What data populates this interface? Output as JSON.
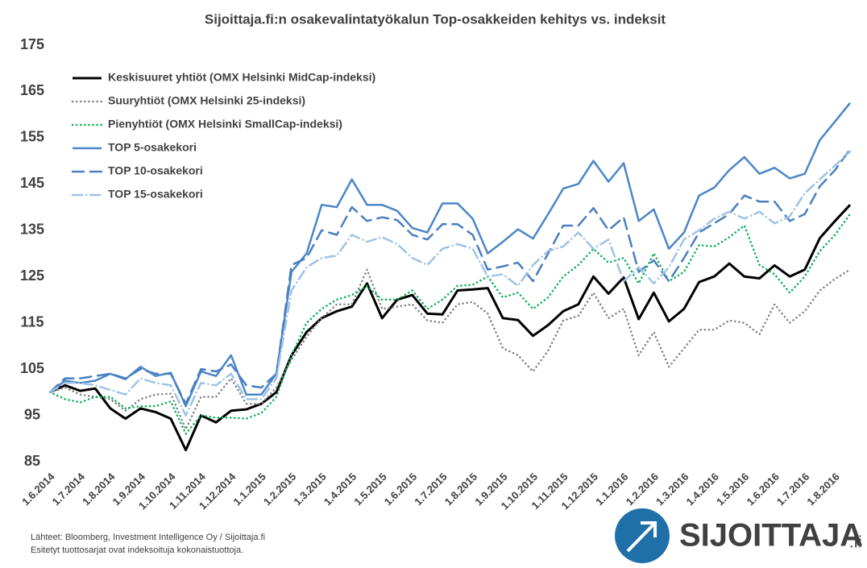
{
  "chart_data": {
    "type": "line",
    "title": "Sijoittaja.fi:n osakevalintatyökalun Top-osakkeiden kehitys vs. indeksit",
    "categories": [
      "1.6.2014",
      null,
      "1.7.2014",
      null,
      "1.8.2014",
      null,
      "1.9.2014",
      null,
      "1.10.2014",
      null,
      "1.11.2014",
      null,
      "1.12.2014",
      null,
      "1.1.2015",
      null,
      "1.2.2015",
      null,
      "1.3.2015",
      null,
      "1.4.2015",
      null,
      "1.5.2015",
      null,
      "1.6.2015",
      null,
      "1.7.2015",
      null,
      "1.8.2015",
      null,
      "1.9.2015",
      null,
      "1.10.2015",
      null,
      "1.11.2015",
      null,
      "1.12.2015",
      null,
      "1.1.2016",
      null,
      "1.2.2016",
      null,
      "1.3.2016",
      null,
      "1.4.2016",
      null,
      "1.5.2016",
      null,
      "1.6.2016",
      null,
      "1.7.2016",
      null,
      "1.8.2016",
      null
    ],
    "series": [
      {
        "name": "Keskisuuret yhtiöt (OMX Helsinki MidCap-indeksi)",
        "color": "#000000",
        "dash": "solid",
        "values": [
          100,
          101.5,
          100.3,
          100.8,
          96.5,
          94.3,
          96.5,
          95.7,
          94.3,
          87.5,
          95,
          93.5,
          96,
          96.3,
          97.5,
          100,
          108,
          113,
          116,
          117.5,
          118.5,
          123.5,
          116,
          120,
          121,
          117,
          116.8,
          122,
          122.2,
          122.5,
          116,
          115.6,
          112.2,
          114.5,
          117.5,
          119,
          125,
          121.3,
          124.8,
          115.8,
          121.5,
          115.3,
          118,
          123.8,
          125,
          127.8,
          125,
          124.6,
          127.4,
          125,
          126.5,
          133.3,
          137,
          140.5
        ]
      },
      {
        "name": "Suuryhtiöt (OMX Helsinki 25-indeksi)",
        "color": "#808080",
        "dash": "dot",
        "values": [
          100,
          101,
          99.5,
          99,
          98.5,
          96,
          98.5,
          99.5,
          99.7,
          92,
          99,
          99,
          103,
          97.5,
          97.5,
          101,
          107,
          112,
          116,
          119,
          119,
          126.5,
          118,
          118.5,
          119,
          115.5,
          115,
          119,
          119.5,
          117,
          109.5,
          108,
          104.5,
          109,
          115.5,
          116.5,
          121.5,
          116,
          118,
          108,
          113,
          105.5,
          109.5,
          113.5,
          113.5,
          115.5,
          115,
          112.5,
          119,
          115,
          117.5,
          122,
          124.5,
          126.5
        ]
      },
      {
        "name": "Pienyhtiöt (OMX Helsinki SmallCap-indeksi)",
        "color": "#00b050",
        "dash": "dot",
        "values": [
          100,
          98.5,
          97.8,
          99,
          99,
          96.5,
          97,
          97,
          98,
          91,
          95,
          94.5,
          94.5,
          94.3,
          95.5,
          99,
          108,
          115,
          118,
          120,
          121,
          123,
          120,
          120,
          122,
          118,
          120,
          123,
          123.2,
          125,
          120.5,
          121.5,
          118,
          120.5,
          125,
          127.5,
          131,
          128,
          129,
          123.5,
          130,
          124,
          126,
          131.8,
          131.5,
          133.5,
          136,
          127.5,
          125.5,
          121.5,
          125,
          130.5,
          134,
          138.5
        ]
      },
      {
        "name": "TOP 5-osakekori",
        "color": "#4a86c8",
        "dash": "solid",
        "values": [
          100,
          102.5,
          102,
          102.5,
          104,
          102.8,
          105.5,
          103.5,
          104.2,
          97,
          104.5,
          103.5,
          108,
          99.5,
          99.5,
          104,
          126,
          130,
          140.5,
          140,
          146,
          140.5,
          140.5,
          139.2,
          135.5,
          134.5,
          140.8,
          140.8,
          137.5,
          130,
          132.5,
          135.2,
          133.2,
          138.5,
          144,
          145,
          150,
          145.5,
          149.5,
          137,
          139.5,
          131,
          134.5,
          142.5,
          144.2,
          148,
          150.8,
          147.2,
          148.5,
          146.2,
          147.2,
          154.5,
          158.5,
          162.5
        ]
      },
      {
        "name": "TOP 10-osakekori",
        "color": "#4a7fc0",
        "dash": "dash",
        "values": [
          100,
          103,
          103,
          103.5,
          104,
          103,
          105,
          104,
          104,
          97.5,
          105,
          104.5,
          106,
          101.5,
          101,
          104,
          127.5,
          129,
          135,
          134,
          140,
          137,
          137.8,
          137.2,
          134,
          133,
          136.3,
          136.3,
          134,
          126.5,
          127.2,
          128,
          124,
          130,
          136,
          136,
          139.8,
          135,
          137.8,
          126,
          128.5,
          124,
          129,
          134.5,
          136.5,
          138.5,
          142.5,
          141.2,
          141.2,
          137,
          138.5,
          144.5,
          148,
          152.5
        ]
      },
      {
        "name": "TOP 15-osakekori",
        "color": "#9dc3e6",
        "dash": "dashdot",
        "values": [
          100,
          102,
          102,
          101.5,
          100.5,
          99.5,
          103,
          102,
          101.5,
          95,
          102,
          101.5,
          104,
          98.5,
          98.5,
          103,
          122,
          127,
          129,
          129.5,
          134,
          132.5,
          133.5,
          132,
          129,
          127.5,
          131,
          132,
          131,
          125,
          125.5,
          123,
          127.5,
          130.5,
          131.5,
          134.5,
          131,
          133,
          124,
          127,
          123.5,
          127,
          133,
          135,
          137.5,
          139,
          137.5,
          139,
          136.5,
          138,
          143,
          146,
          149,
          152
        ]
      }
    ],
    "ylim": [
      85,
      175
    ],
    "yticks": [
      85,
      95,
      105,
      115,
      125,
      135,
      145,
      155,
      165,
      175
    ],
    "grid": false,
    "legend": "upper left"
  },
  "footer": {
    "source": "Lähteet: Bloomberg, Investment Intelligence Oy / Sijoittaja.fi",
    "note": "Esitetyt tuottosarjat ovat indeksoituja kokonaistuottoja."
  },
  "logo": {
    "name": "SIJOITTAJA",
    "suffix": ".fi"
  }
}
